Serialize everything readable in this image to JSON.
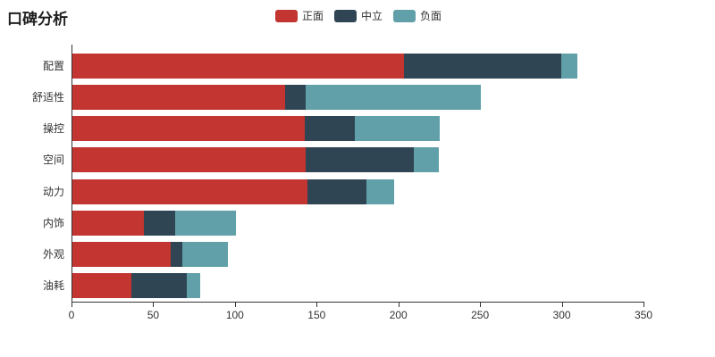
{
  "title": "口碑分析",
  "legend": {
    "items": [
      {
        "label": "正面",
        "color": "#c23531"
      },
      {
        "label": "中立",
        "color": "#2f4554"
      },
      {
        "label": "负面",
        "color": "#61a0a8"
      }
    ]
  },
  "chart_data": {
    "type": "bar",
    "orientation": "horizontal",
    "stacked": true,
    "title": "口碑分析",
    "xlabel": "",
    "ylabel": "",
    "xlim": [
      0,
      350
    ],
    "x_ticks": [
      0,
      50,
      100,
      150,
      200,
      250,
      300,
      350
    ],
    "grid": false,
    "legend_position": "top-center",
    "categories": [
      "配置",
      "舒适性",
      "操控",
      "空间",
      "动力",
      "内饰",
      "外观",
      "油耗"
    ],
    "series": [
      {
        "name": "正面",
        "color": "#c23531",
        "values": [
          203,
          130,
          142,
          143,
          144,
          44,
          60,
          36
        ]
      },
      {
        "name": "中立",
        "color": "#2f4554",
        "values": [
          96,
          13,
          31,
          66,
          36,
          19,
          7,
          34
        ]
      },
      {
        "name": "负面",
        "color": "#61a0a8",
        "values": [
          10,
          107,
          52,
          15,
          17,
          37,
          28,
          8
        ]
      }
    ]
  }
}
